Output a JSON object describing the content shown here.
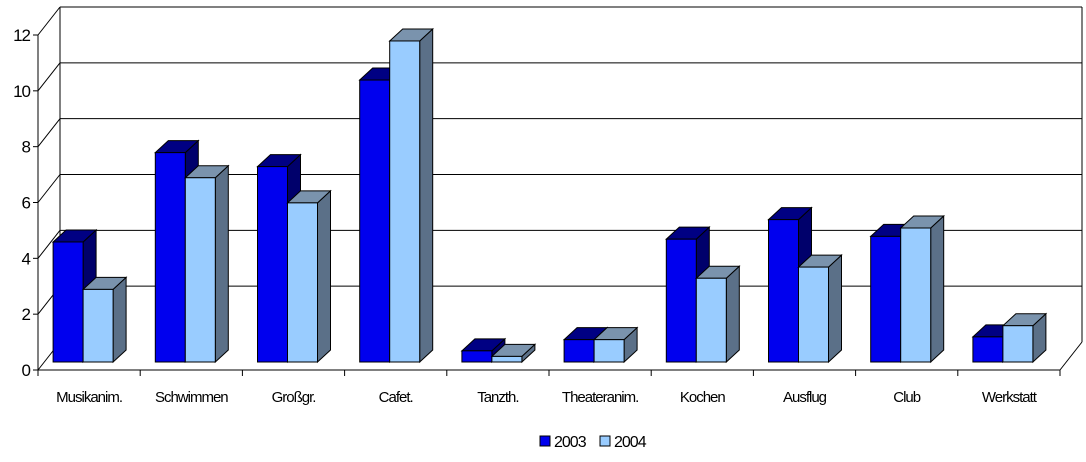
{
  "chart_data": {
    "type": "bar",
    "title": "",
    "xlabel": "",
    "ylabel": "",
    "ylim": [
      0,
      12
    ],
    "yticks": [
      0,
      2,
      4,
      6,
      8,
      10,
      12
    ],
    "grid": true,
    "legend_position": "bottom",
    "categories": [
      "Musikanim.",
      "Schwimmen",
      "Großgr.",
      "Cafet.",
      "Tanzth.",
      "Theateranim.",
      "Kochen",
      "Ausflug",
      "Club",
      "Werkstatt"
    ],
    "series": [
      {
        "name": "2003",
        "color": "#0000ee",
        "values": [
          4.3,
          7.5,
          7.0,
          10.1,
          0.4,
          0.8,
          4.4,
          5.1,
          4.5,
          0.9
        ]
      },
      {
        "name": "2004",
        "color": "#99ccff",
        "values": [
          2.6,
          6.6,
          5.7,
          11.5,
          0.2,
          0.8,
          3.0,
          3.4,
          4.8,
          1.3
        ]
      }
    ]
  }
}
